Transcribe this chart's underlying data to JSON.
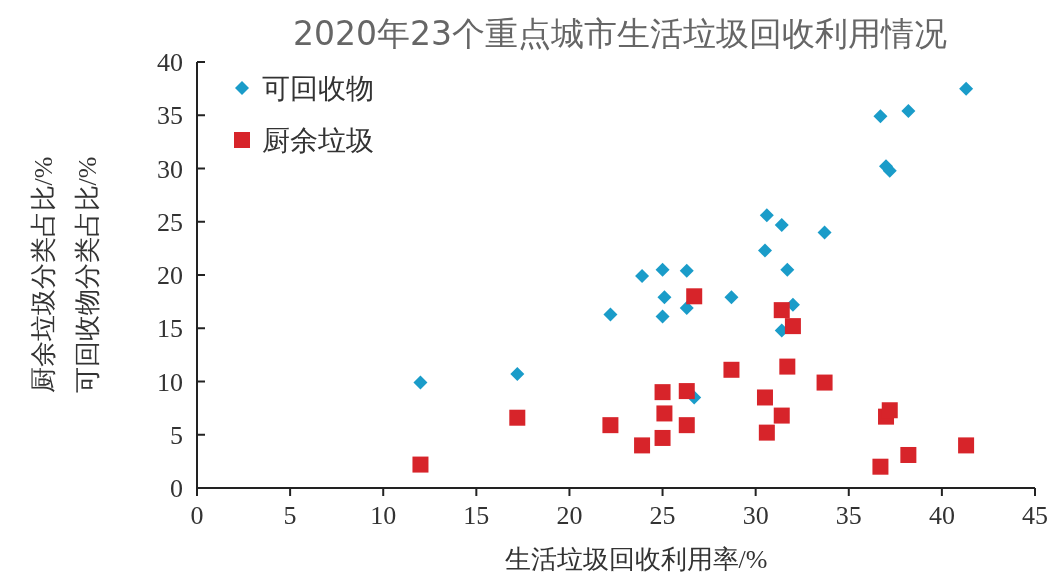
{
  "chart_data": {
    "type": "scatter",
    "title": "2020年23个重点城市生活垃圾回收利用情况",
    "xlabel": "生活垃圾回收利用率/%",
    "ylabel": "厨余垃圾分类占比/%\n可回收物分类占比/%",
    "xlim": [
      0,
      45
    ],
    "xticks": [
      0,
      5,
      10,
      15,
      20,
      25,
      30,
      35,
      40,
      45
    ],
    "ylim": [
      0,
      40
    ],
    "yticks": [
      0,
      5,
      10,
      15,
      20,
      25,
      30,
      35,
      40
    ],
    "legend": "top left",
    "series": [
      {
        "name": "可回收物",
        "color": "#1a9cc9",
        "marker": "diamond",
        "x": [
          12.0,
          17.2,
          22.2,
          23.9,
          25.0,
          25.1,
          25.0,
          26.3,
          26.3,
          26.7,
          28.7,
          30.5,
          30.6,
          31.4,
          31.4,
          31.7,
          32.0,
          33.7,
          36.7,
          37.0,
          37.2,
          38.2,
          41.3
        ],
        "values": [
          9.9,
          10.7,
          16.3,
          19.9,
          20.5,
          17.9,
          16.1,
          20.4,
          16.9,
          8.5,
          17.9,
          22.3,
          25.6,
          24.7,
          14.8,
          20.5,
          17.2,
          24.0,
          34.9,
          30.2,
          29.8,
          35.4,
          37.5
        ]
      },
      {
        "name": "厨余垃圾",
        "color": "#d7242a",
        "marker": "square",
        "x": [
          12.0,
          17.2,
          22.2,
          23.9,
          25.0,
          25.1,
          25.0,
          26.3,
          26.3,
          26.7,
          28.7,
          30.5,
          30.6,
          31.4,
          31.4,
          31.7,
          32.0,
          33.7,
          36.7,
          37.0,
          37.2,
          38.2,
          41.3
        ],
        "values": [
          2.2,
          6.6,
          5.9,
          4.0,
          9.0,
          7.0,
          4.7,
          9.1,
          5.9,
          18.0,
          11.1,
          8.5,
          5.2,
          16.7,
          6.8,
          11.4,
          15.2,
          9.9,
          2.0,
          6.7,
          7.3,
          3.1,
          4.0
        ]
      }
    ]
  }
}
